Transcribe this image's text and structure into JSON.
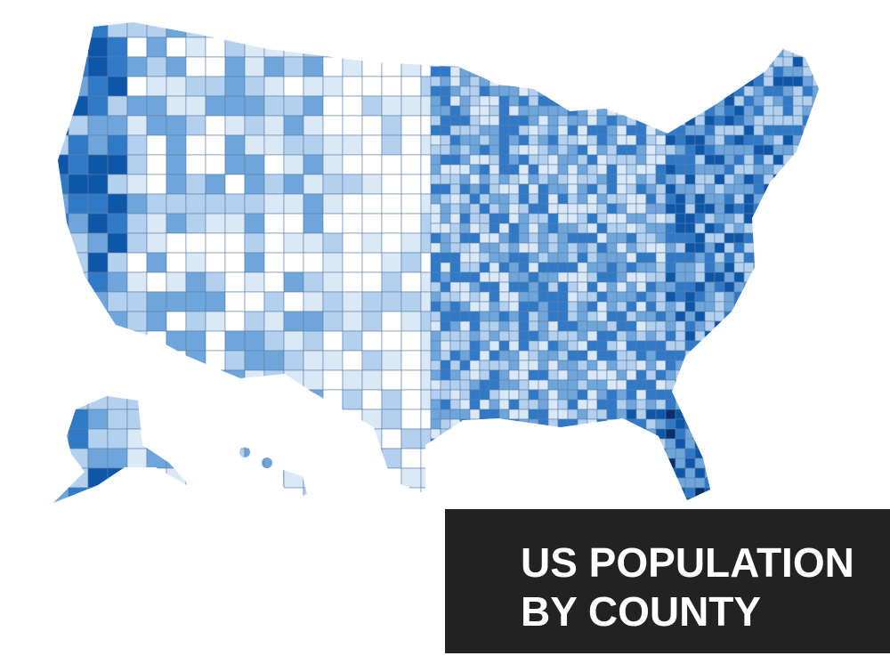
{
  "title_lines": [
    "US POPULATION",
    "BY COUNTY"
  ]
}
